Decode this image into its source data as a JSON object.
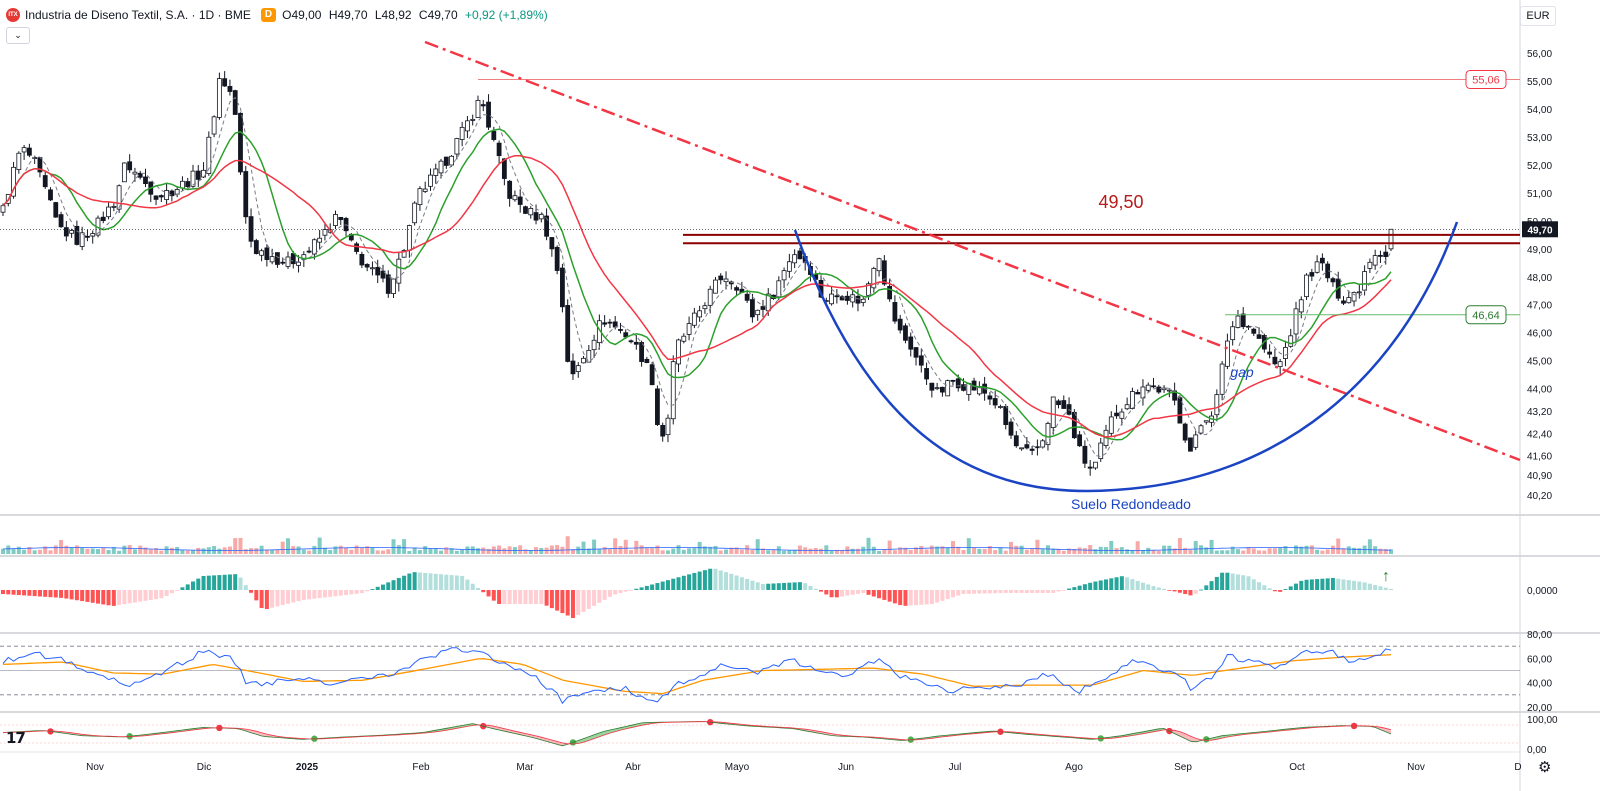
{
  "header": {
    "logo_text": "ITX",
    "symbol": "Industria de Diseno Textil, S.A. · 1D · BME",
    "interval_badge": "D",
    "open": "O49,00",
    "high": "H49,70",
    "low": "L48,92",
    "close": "C49,70",
    "change": "+0,92 (+1,89%)"
  },
  "currency": "EUR",
  "settings_icon": "gear-icon",
  "colors": {
    "up": "#089981",
    "down": "#f23645",
    "candle": "#131722",
    "sma_fast": "#2ca02c",
    "sma_slow": "#f23645",
    "trendline": "#f23645",
    "resistance": "#8b0000",
    "rounded_bottom": "#1a44c4",
    "rsi": "#2962ff",
    "rsi_ma": "#ff9800"
  },
  "chart_data": {
    "type": "candlestick",
    "x_ticks": [
      "Nov",
      "Dic",
      "2025",
      "Feb",
      "Mar",
      "Abr",
      "Mayo",
      "Jun",
      "Jul",
      "Ago",
      "Sep",
      "Oct",
      "Nov",
      "D"
    ],
    "y_ticks": [
      "56,00",
      "55,00",
      "54,00",
      "53,00",
      "52,00",
      "51,00",
      "50,00",
      "49,00",
      "48,00",
      "47,00",
      "46,00",
      "45,00",
      "44,00",
      "43,20",
      "42,40",
      "41,60",
      "40,90",
      "40,20"
    ],
    "last_price": "49,70",
    "price_labels": [
      {
        "value": 55.06,
        "text": "55,06",
        "color": "#f23645"
      },
      {
        "value": 46.64,
        "text": "46,64",
        "color": "#2e7d32"
      }
    ],
    "resistance": {
      "value": 49.5,
      "label": "49,50"
    },
    "annotations": {
      "rounded_bottom": "Suelo Redondeado",
      "gap": "gap"
    },
    "close_anchors": [
      [
        0,
        50.4
      ],
      [
        8,
        51.5
      ],
      [
        18,
        52.6
      ],
      [
        30,
        52.2
      ],
      [
        42,
        51.1
      ],
      [
        55,
        49.8
      ],
      [
        75,
        49.3
      ],
      [
        95,
        49.9
      ],
      [
        110,
        50.6
      ],
      [
        123,
        52.1
      ],
      [
        135,
        51.6
      ],
      [
        155,
        50.9
      ],
      [
        175,
        51.2
      ],
      [
        200,
        51.8
      ],
      [
        208,
        53.2
      ],
      [
        217,
        55.2
      ],
      [
        227,
        54.6
      ],
      [
        233,
        53.7
      ],
      [
        240,
        50.5
      ],
      [
        250,
        49.0
      ],
      [
        265,
        48.8
      ],
      [
        285,
        48.5
      ],
      [
        305,
        48.9
      ],
      [
        320,
        49.5
      ],
      [
        335,
        50.2
      ],
      [
        350,
        49.0
      ],
      [
        365,
        48.3
      ],
      [
        385,
        47.6
      ],
      [
        400,
        48.9
      ],
      [
        415,
        50.9
      ],
      [
        440,
        52.0
      ],
      [
        460,
        53.2
      ],
      [
        478,
        54.4
      ],
      [
        490,
        52.9
      ],
      [
        505,
        51.0
      ],
      [
        525,
        50.3
      ],
      [
        540,
        50.1
      ],
      [
        557,
        47.9
      ],
      [
        567,
        44.2
      ],
      [
        585,
        45.5
      ],
      [
        600,
        46.5
      ],
      [
        625,
        45.9
      ],
      [
        640,
        45.1
      ],
      [
        652,
        44.1
      ],
      [
        656,
        41.9
      ],
      [
        665,
        43.0
      ],
      [
        672,
        45.4
      ],
      [
        690,
        46.4
      ],
      [
        705,
        47.3
      ],
      [
        720,
        48.1
      ],
      [
        735,
        47.7
      ],
      [
        750,
        46.6
      ],
      [
        770,
        47.4
      ],
      [
        790,
        48.9
      ],
      [
        805,
        48.5
      ],
      [
        820,
        47.2
      ],
      [
        840,
        47.4
      ],
      [
        860,
        47.1
      ],
      [
        875,
        49.0
      ],
      [
        885,
        47.3
      ],
      [
        895,
        46.1
      ],
      [
        908,
        45.5
      ],
      [
        920,
        44.6
      ],
      [
        935,
        43.8
      ],
      [
        950,
        44.3
      ],
      [
        965,
        44.1
      ],
      [
        980,
        43.9
      ],
      [
        995,
        43.4
      ],
      [
        1005,
        42.5
      ],
      [
        1015,
        41.8
      ],
      [
        1030,
        41.6
      ],
      [
        1040,
        42.2
      ],
      [
        1050,
        43.6
      ],
      [
        1065,
        43.1
      ],
      [
        1078,
        41.6
      ],
      [
        1090,
        41.0
      ],
      [
        1100,
        42.1
      ],
      [
        1110,
        43.0
      ],
      [
        1125,
        43.6
      ],
      [
        1140,
        44.2
      ],
      [
        1155,
        44.0
      ],
      [
        1170,
        43.7
      ],
      [
        1180,
        42.6
      ],
      [
        1188,
        41.7
      ],
      [
        1200,
        42.9
      ],
      [
        1212,
        43.3
      ],
      [
        1225,
        45.9
      ],
      [
        1235,
        46.6
      ],
      [
        1250,
        46.1
      ],
      [
        1265,
        45.2
      ],
      [
        1275,
        44.7
      ],
      [
        1285,
        45.7
      ],
      [
        1295,
        46.9
      ],
      [
        1305,
        48.1
      ],
      [
        1318,
        48.5
      ],
      [
        1330,
        47.6
      ],
      [
        1342,
        47.2
      ],
      [
        1355,
        47.5
      ],
      [
        1365,
        48.6
      ],
      [
        1375,
        49.0
      ],
      [
        1382,
        48.7
      ],
      [
        1388,
        49.7
      ]
    ],
    "volume_spikes": [
      [
        1372,
        3.5
      ]
    ],
    "momentum_anchors": [
      [
        0,
        -4
      ],
      [
        60,
        -8
      ],
      [
        110,
        -16
      ],
      [
        160,
        -8
      ],
      [
        200,
        14
      ],
      [
        235,
        16
      ],
      [
        260,
        -20
      ],
      [
        300,
        -10
      ],
      [
        360,
        -3
      ],
      [
        410,
        18
      ],
      [
        460,
        14
      ],
      [
        495,
        -14
      ],
      [
        540,
        -14
      ],
      [
        570,
        -28
      ],
      [
        610,
        -5
      ],
      [
        640,
        3
      ],
      [
        680,
        14
      ],
      [
        710,
        22
      ],
      [
        760,
        6
      ],
      [
        800,
        8
      ],
      [
        830,
        -8
      ],
      [
        860,
        -3
      ],
      [
        900,
        -16
      ],
      [
        930,
        -14
      ],
      [
        960,
        -4
      ],
      [
        1000,
        -3
      ],
      [
        1050,
        -3
      ],
      [
        1090,
        8
      ],
      [
        1120,
        14
      ],
      [
        1150,
        4
      ],
      [
        1190,
        -6
      ],
      [
        1220,
        18
      ],
      [
        1245,
        14
      ],
      [
        1275,
        -3
      ],
      [
        1300,
        10
      ],
      [
        1330,
        12
      ],
      [
        1360,
        8
      ],
      [
        1388,
        1
      ]
    ],
    "rsi": {
      "y_ticks": [
        "80,00",
        "60,00",
        "40,00",
        "20,00"
      ],
      "anchors": [
        [
          0,
          58
        ],
        [
          30,
          64
        ],
        [
          60,
          59
        ],
        [
          90,
          48
        ],
        [
          110,
          42
        ],
        [
          130,
          38
        ],
        [
          160,
          48
        ],
        [
          200,
          66
        ],
        [
          230,
          59
        ],
        [
          245,
          38
        ],
        [
          275,
          41
        ],
        [
          305,
          42
        ],
        [
          330,
          40
        ],
        [
          360,
          45
        ],
        [
          390,
          46
        ],
        [
          420,
          59
        ],
        [
          450,
          67
        ],
        [
          478,
          66
        ],
        [
          500,
          55
        ],
        [
          530,
          46
        ],
        [
          560,
          25
        ],
        [
          580,
          33
        ],
        [
          620,
          36
        ],
        [
          652,
          22
        ],
        [
          672,
          39
        ],
        [
          700,
          46
        ],
        [
          720,
          56
        ],
        [
          750,
          48
        ],
        [
          790,
          58
        ],
        [
          810,
          51
        ],
        [
          840,
          44
        ],
        [
          875,
          59
        ],
        [
          895,
          46
        ],
        [
          920,
          41
        ],
        [
          945,
          33
        ],
        [
          970,
          37
        ],
        [
          995,
          36
        ],
        [
          1020,
          39
        ],
        [
          1045,
          47
        ],
        [
          1075,
          32
        ],
        [
          1100,
          43
        ],
        [
          1130,
          57
        ],
        [
          1150,
          53
        ],
        [
          1175,
          47
        ],
        [
          1188,
          35
        ],
        [
          1210,
          46
        ],
        [
          1225,
          62
        ],
        [
          1245,
          58
        ],
        [
          1275,
          51
        ],
        [
          1300,
          64
        ],
        [
          1330,
          66
        ],
        [
          1345,
          58
        ],
        [
          1370,
          62
        ],
        [
          1388,
          67
        ]
      ],
      "ma_anchors": [
        [
          0,
          55
        ],
        [
          60,
          57
        ],
        [
          110,
          48
        ],
        [
          160,
          47
        ],
        [
          210,
          55
        ],
        [
          250,
          49
        ],
        [
          300,
          41
        ],
        [
          360,
          42
        ],
        [
          420,
          51
        ],
        [
          478,
          60
        ],
        [
          520,
          55
        ],
        [
          560,
          42
        ],
        [
          620,
          33
        ],
        [
          660,
          31
        ],
        [
          700,
          42
        ],
        [
          760,
          50
        ],
        [
          820,
          51
        ],
        [
          870,
          52
        ],
        [
          920,
          47
        ],
        [
          970,
          37
        ],
        [
          1030,
          38
        ],
        [
          1090,
          38
        ],
        [
          1140,
          50
        ],
        [
          1190,
          46
        ],
        [
          1230,
          51
        ],
        [
          1290,
          58
        ],
        [
          1340,
          61
        ],
        [
          1388,
          63
        ]
      ]
    },
    "oscillator": {
      "y_ticks": [
        "100,00",
        "0,00"
      ],
      "anchors": [
        [
          0,
          55
        ],
        [
          40,
          62
        ],
        [
          80,
          44
        ],
        [
          120,
          40
        ],
        [
          160,
          55
        ],
        [
          200,
          72
        ],
        [
          235,
          68
        ],
        [
          260,
          42
        ],
        [
          300,
          32
        ],
        [
          340,
          40
        ],
        [
          380,
          46
        ],
        [
          420,
          55
        ],
        [
          470,
          85
        ],
        [
          490,
          68
        ],
        [
          530,
          38
        ],
        [
          560,
          10
        ],
        [
          600,
          58
        ],
        [
          640,
          88
        ],
        [
          700,
          92
        ],
        [
          740,
          78
        ],
        [
          790,
          68
        ],
        [
          830,
          44
        ],
        [
          860,
          40
        ],
        [
          900,
          28
        ],
        [
          940,
          45
        ],
        [
          990,
          60
        ],
        [
          1020,
          50
        ],
        [
          1060,
          40
        ],
        [
          1090,
          32
        ],
        [
          1120,
          45
        ],
        [
          1160,
          70
        ],
        [
          1190,
          22
        ],
        [
          1220,
          45
        ],
        [
          1260,
          58
        ],
        [
          1300,
          72
        ],
        [
          1340,
          78
        ],
        [
          1370,
          75
        ],
        [
          1388,
          50
        ]
      ]
    }
  }
}
